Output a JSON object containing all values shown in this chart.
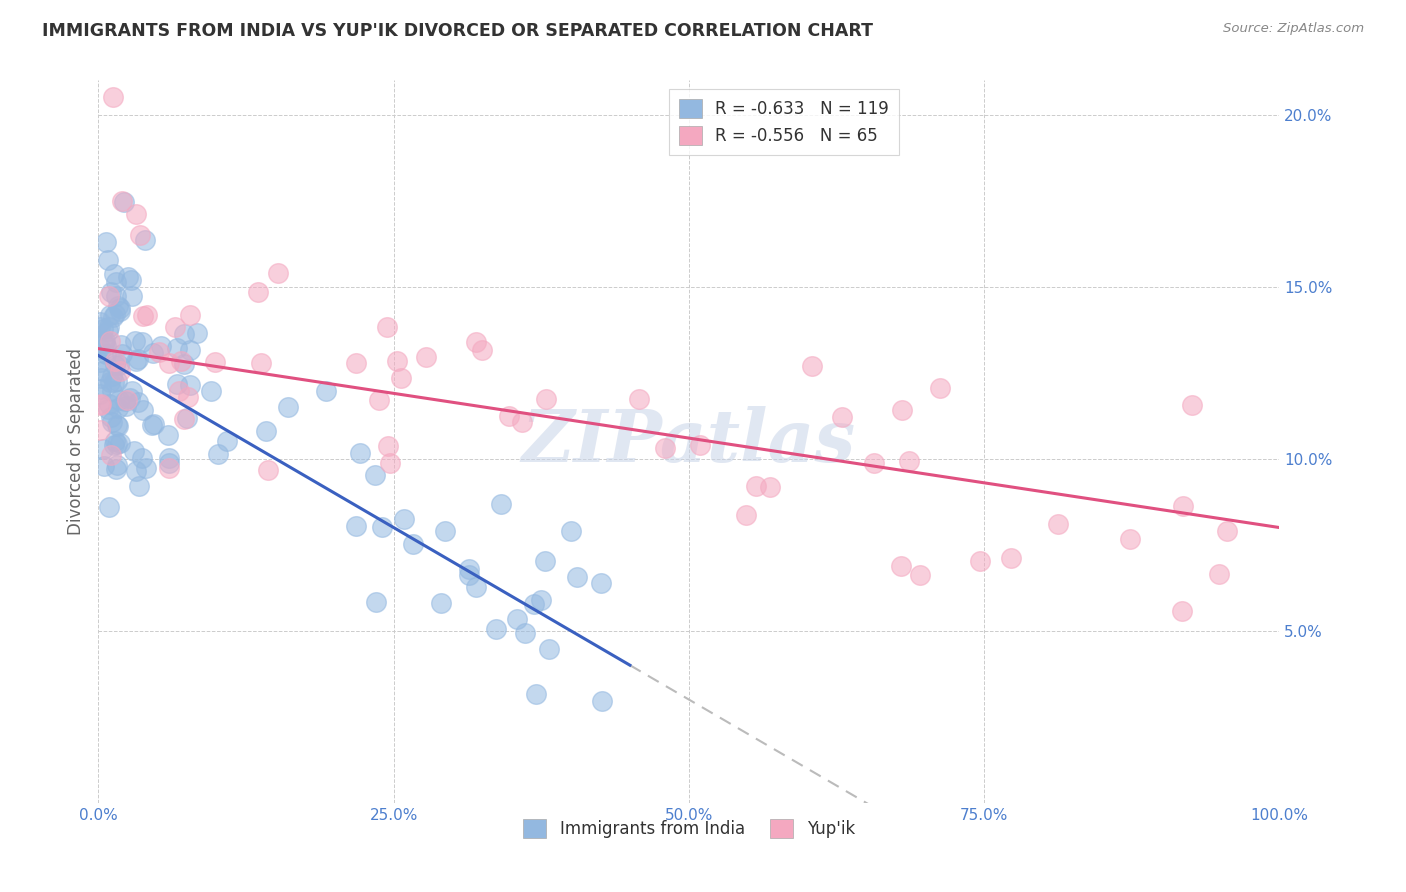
{
  "title": "IMMIGRANTS FROM INDIA VS YUP'IK DIVORCED OR SEPARATED CORRELATION CHART",
  "source": "Source: ZipAtlas.com",
  "ylabel": "Divorced or Separated",
  "xlim": [
    0,
    100
  ],
  "ylim": [
    0,
    21
  ],
  "yticks": [
    5,
    10,
    15,
    20
  ],
  "xticks": [
    0,
    25,
    50,
    75,
    100
  ],
  "legend_blue_r": "R = -0.633",
  "legend_blue_n": "N = 119",
  "legend_pink_r": "R = -0.556",
  "legend_pink_n": "N = 65",
  "blue_color": "#93b8e0",
  "pink_color": "#f4a8c0",
  "trend_blue": "#3a60c0",
  "trend_pink": "#e05080",
  "trend_dashed_color": "#bbbbbb",
  "watermark": "ZIPatlas",
  "background_color": "#ffffff",
  "grid_color": "#cccccc",
  "ytick_color": "#4d7fce",
  "xtick_color": "#4d7fce",
  "blue_intercept": 13.0,
  "blue_slope": -0.2,
  "pink_intercept": 13.2,
  "pink_slope": -0.052,
  "blue_solid_x_end": 45.0,
  "blue_dashed_x_end": 100.0
}
